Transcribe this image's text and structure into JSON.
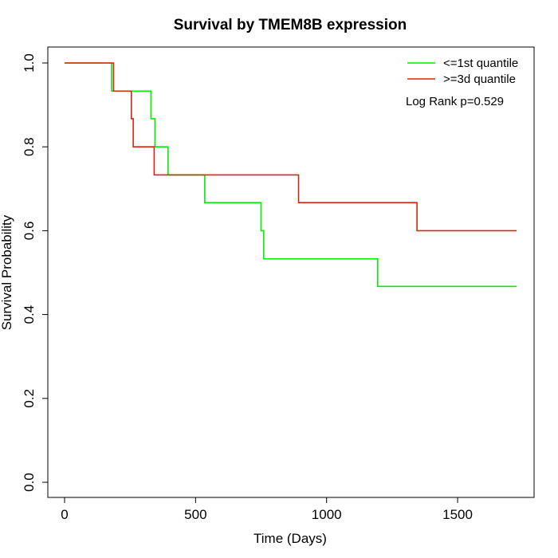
{
  "chart_data": {
    "type": "line",
    "title": "Survival by TMEM8B expression",
    "xlabel": "Time (Days)",
    "ylabel": "Survival Probability",
    "xlim": [
      0,
      1725
    ],
    "ylim": [
      0,
      1.0
    ],
    "xticks": [
      0,
      500,
      1000,
      1500
    ],
    "yticks": [
      0.0,
      0.2,
      0.4,
      0.6,
      0.8,
      1.0
    ],
    "xtick_labels": [
      "0",
      "500",
      "1000",
      "1500"
    ],
    "ytick_labels": [
      "0.0",
      "0.2",
      "0.4",
      "0.6",
      "0.8",
      "1.0"
    ],
    "grid": false,
    "legend_position": "top-right",
    "annotation": "Log Rank p=0.529",
    "series": [
      {
        "name": "<=1st quantile",
        "color": "#00ee00",
        "step": true,
        "x": [
          0,
          180,
          330,
          345,
          395,
          535,
          750,
          760,
          1195,
          1725
        ],
        "y": [
          1.0,
          0.933,
          0.867,
          0.8,
          0.733,
          0.667,
          0.6,
          0.533,
          0.467,
          0.467
        ]
      },
      {
        "name": ">=3d quantile",
        "color": "#dd2211",
        "step": true,
        "x": [
          0,
          187,
          255,
          262,
          342,
          893,
          1345,
          1725
        ],
        "y": [
          1.0,
          0.933,
          0.867,
          0.8,
          0.733,
          0.667,
          0.6,
          0.6
        ]
      }
    ]
  }
}
